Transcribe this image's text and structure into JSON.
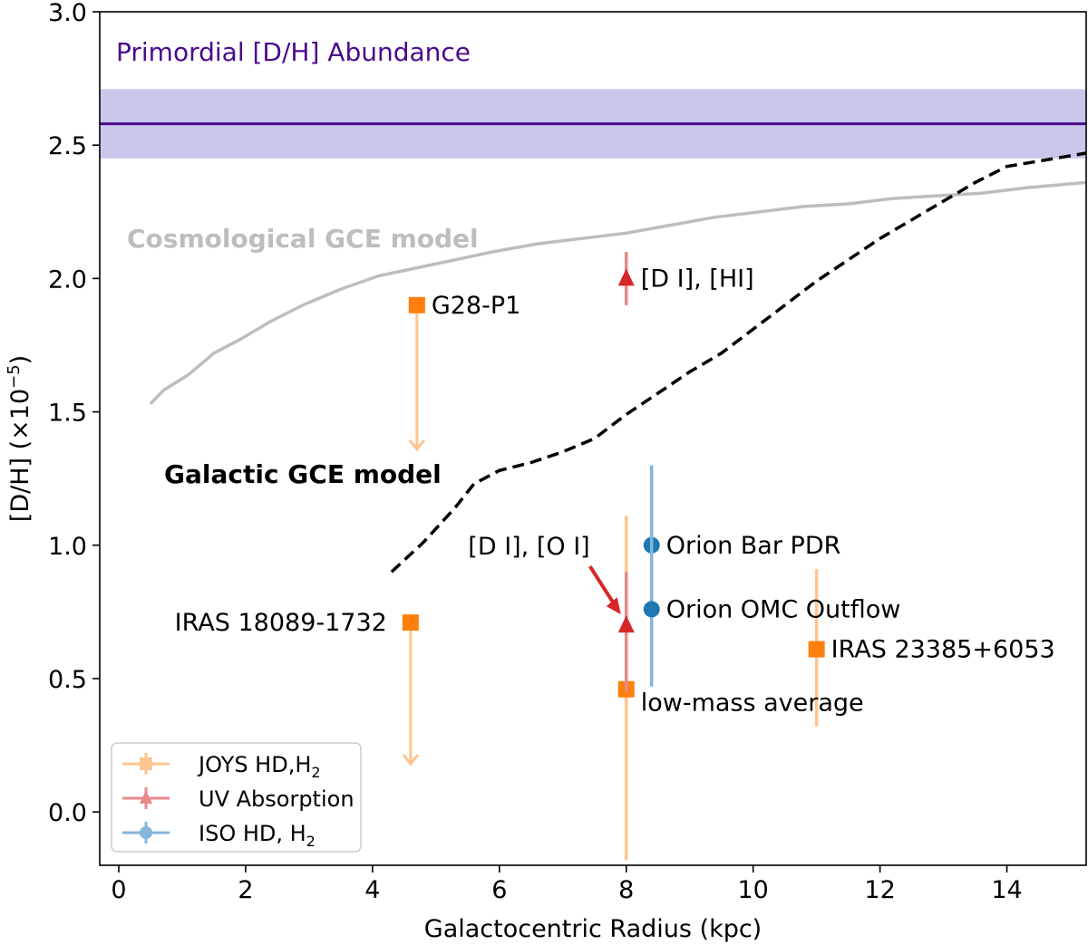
{
  "chart_data": {
    "type": "scatter",
    "xlabel": "Galactocentric Radius (kpc)",
    "ylabel_main": "[D/H] (×10",
    "ylabel_sup": "−5",
    "ylabel_close": ")",
    "xlim": [
      -0.3,
      15.25
    ],
    "ylim": [
      -0.2,
      3.0
    ],
    "xticks": [
      0,
      2,
      4,
      6,
      8,
      10,
      12,
      14
    ],
    "xtick_labels": [
      "0",
      "2",
      "4",
      "6",
      "8",
      "10",
      "12",
      "14"
    ],
    "yticks": [
      0.0,
      0.5,
      1.0,
      1.5,
      2.0,
      2.5,
      3.0
    ],
    "ytick_labels": [
      "0.0",
      "0.5",
      "1.0",
      "1.5",
      "2.0",
      "2.5",
      "3.0"
    ],
    "colors": {
      "joys": "#ff7f0e",
      "joys_light": "#ffc48f",
      "uv": "#d62728",
      "uv_light": "#e8898a",
      "iso": "#1f77b4",
      "iso_light": "#84b5da",
      "primordial_line": "#4b0a8c",
      "primordial_band": "#c9c8ea",
      "primordial_text": "#4b0a8c",
      "cosmo": "#bdbdbd",
      "galactic": "#000000"
    },
    "primordial": {
      "label": "Primordial [D/H] Abundance",
      "value": 2.58,
      "band": [
        2.45,
        2.71
      ]
    },
    "cosmo_model": {
      "label": "Cosmological GCE model",
      "x": [
        0.5,
        0.7,
        1.1,
        1.5,
        1.9,
        2.4,
        2.9,
        3.5,
        4.1,
        4.7,
        5.3,
        5.9,
        6.6,
        7.3,
        8.0,
        8.7,
        9.4,
        10.1,
        10.8,
        11.5,
        12.2,
        12.9,
        13.6,
        14.3,
        15.25
      ],
      "y": [
        1.53,
        1.58,
        1.64,
        1.72,
        1.77,
        1.84,
        1.9,
        1.96,
        2.01,
        2.04,
        2.07,
        2.1,
        2.13,
        2.15,
        2.17,
        2.2,
        2.23,
        2.25,
        2.27,
        2.28,
        2.3,
        2.31,
        2.32,
        2.34,
        2.36
      ]
    },
    "galactic_model": {
      "label": "Galactic GCE model",
      "x": [
        4.3,
        4.8,
        5.3,
        5.6,
        6.0,
        6.5,
        7.0,
        7.5,
        8.0,
        8.5,
        9.0,
        9.5,
        10.0,
        10.5,
        11.0,
        11.5,
        12.0,
        12.5,
        13.0,
        13.5,
        14.0,
        14.5,
        15.25
      ],
      "y": [
        0.9,
        1.01,
        1.14,
        1.23,
        1.28,
        1.31,
        1.35,
        1.4,
        1.49,
        1.57,
        1.65,
        1.72,
        1.81,
        1.9,
        1.99,
        2.07,
        2.15,
        2.22,
        2.29,
        2.36,
        2.42,
        2.44,
        2.47
      ]
    },
    "series": [
      {
        "name": "JOYS HD,H",
        "sub": "2",
        "key": "joys",
        "marker": "square",
        "points": [
          {
            "label": "G28-P1",
            "x": 4.7,
            "y": 1.9,
            "upper_limit": true,
            "arrow_to": 1.36,
            "label_side": "right"
          },
          {
            "label": "IRAS 18089-1732",
            "x": 4.6,
            "y": 0.71,
            "upper_limit": true,
            "arrow_to": 0.18,
            "label_side": "left"
          },
          {
            "label": "low-mass average",
            "x": 8.0,
            "y": 0.46,
            "err_lo": -0.18,
            "err_hi": 1.11,
            "label_side": "below-right"
          },
          {
            "label": "IRAS 23385+6053",
            "x": 11.0,
            "y": 0.61,
            "err_lo": 0.32,
            "err_hi": 0.91,
            "label_side": "right"
          }
        ]
      },
      {
        "name": "UV Absorption",
        "sub": "",
        "key": "uv",
        "marker": "triangle",
        "points": [
          {
            "label": "[D I], [HI]",
            "x": 8.0,
            "y": 2.0,
            "err_lo": 1.9,
            "err_hi": 2.1,
            "label_side": "right"
          },
          {
            "label": "[D I], [O I]",
            "x": 8.0,
            "y": 0.7,
            "err_lo": 0.45,
            "err_hi": 0.9,
            "label_side": "arrow"
          }
        ]
      },
      {
        "name": "ISO HD, H",
        "sub": "2",
        "key": "iso",
        "marker": "circle",
        "points": [
          {
            "label": "Orion Bar PDR",
            "x": 8.4,
            "y": 1.0,
            "err_lo": 0.7,
            "err_hi": 1.3,
            "label_side": "right"
          },
          {
            "label": "Orion OMC Outflow",
            "x": 8.4,
            "y": 0.76,
            "err_lo": 0.47,
            "err_hi": 1.05,
            "label_side": "right"
          }
        ]
      }
    ],
    "legend_position": "lower-left"
  }
}
